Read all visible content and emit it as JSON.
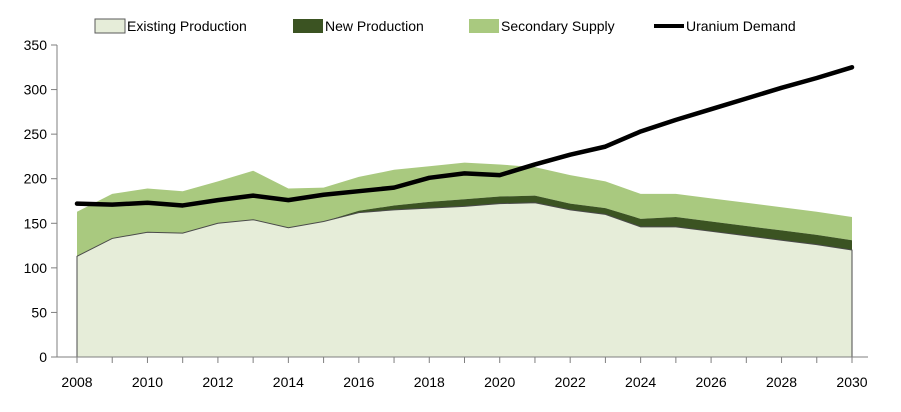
{
  "chart_data": {
    "type": "area",
    "title": "",
    "xlabel": "",
    "ylabel": "",
    "x": [
      2008,
      2009,
      2010,
      2011,
      2012,
      2013,
      2014,
      2015,
      2016,
      2017,
      2018,
      2019,
      2020,
      2021,
      2022,
      2023,
      2024,
      2025,
      2026,
      2027,
      2028,
      2029,
      2030
    ],
    "xlim": [
      2008,
      2030
    ],
    "ylim": [
      0,
      350
    ],
    "x_ticks": [
      "2008",
      "2010",
      "2012",
      "2014",
      "2016",
      "2018",
      "2020",
      "2022",
      "2024",
      "2026",
      "2028",
      "2030"
    ],
    "y_ticks": [
      "0",
      "50",
      "100",
      "150",
      "200",
      "250",
      "300",
      "350"
    ],
    "legend_position": "top",
    "series": [
      {
        "name": "Existing Production",
        "kind": "stacked-area",
        "color": "#e6edd9",
        "values": [
          113,
          133,
          140,
          139,
          150,
          154,
          145,
          152,
          162,
          165,
          167,
          169,
          172,
          173,
          165,
          160,
          146,
          146,
          141,
          136,
          131,
          126,
          120
        ]
      },
      {
        "name": "New Production",
        "kind": "stacked-area",
        "color": "#3b5322",
        "values": [
          0,
          0,
          0,
          0,
          0,
          0,
          0,
          0,
          2,
          5,
          7,
          8,
          8,
          8,
          7,
          7,
          9,
          11,
          11,
          11,
          11,
          11,
          11
        ]
      },
      {
        "name": "Secondary Supply",
        "kind": "stacked-area",
        "color": "#a9c97f",
        "values": [
          50,
          50,
          49,
          47,
          47,
          55,
          44,
          38,
          38,
          40,
          40,
          41,
          36,
          32,
          32,
          30,
          28,
          26,
          26,
          26,
          26,
          26,
          26
        ]
      },
      {
        "name": "Uranium Demand",
        "kind": "line",
        "color": "#000000",
        "values": [
          172,
          171,
          173,
          170,
          176,
          181,
          176,
          182,
          186,
          190,
          201,
          206,
          204,
          216,
          227,
          236,
          253,
          266,
          278,
          290,
          302,
          313,
          325
        ]
      }
    ]
  }
}
